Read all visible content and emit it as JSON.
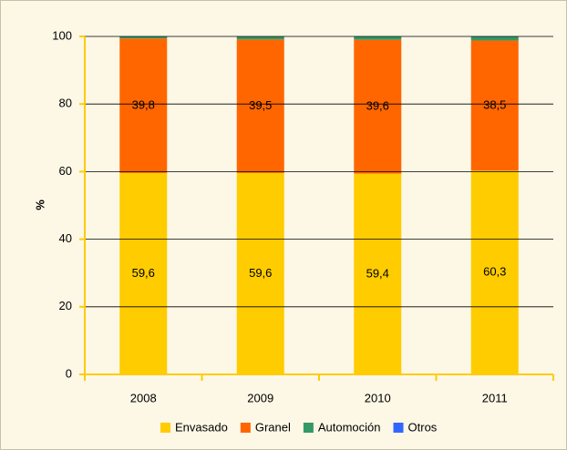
{
  "chart_data": {
    "type": "stacked_bar",
    "categories": [
      "2008",
      "2009",
      "2010",
      "2011"
    ],
    "series": [
      {
        "name": "Envasado",
        "color": "#ffcc00",
        "values": [
          59.6,
          59.6,
          59.4,
          60.3
        ],
        "value_labels": [
          "59,6",
          "59,6",
          "59,4",
          "60,3"
        ]
      },
      {
        "name": "Granel",
        "color": "#ff6600",
        "values": [
          39.8,
          39.5,
          39.6,
          38.5
        ],
        "value_labels": [
          "39,8",
          "39,5",
          "39,6",
          "38,5"
        ]
      },
      {
        "name": "Automoción",
        "color": "#339966",
        "values": [
          0.6,
          0.9,
          1.0,
          1.2
        ]
      },
      {
        "name": "Otros",
        "color": "#3366ff",
        "values": [
          0,
          0,
          0,
          0
        ]
      }
    ],
    "ylabel": "%",
    "ylim": [
      0,
      100
    ],
    "yticks": [
      0,
      20,
      40,
      60,
      80,
      100
    ],
    "grid": true,
    "legend": "bottom"
  }
}
